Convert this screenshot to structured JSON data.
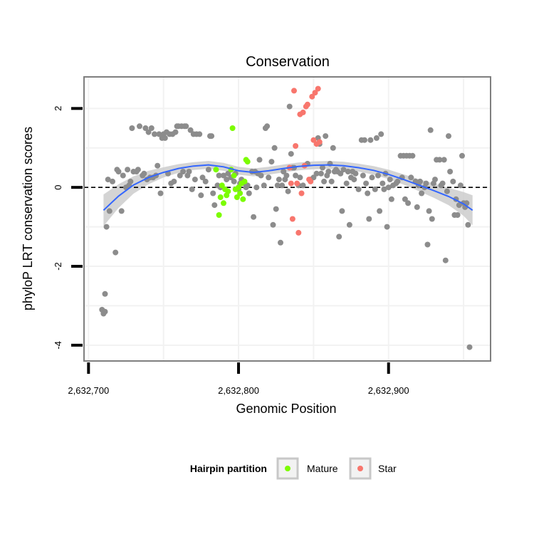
{
  "chart_data": {
    "type": "scatter",
    "title": "Conservation",
    "xlabel": "Genomic Position",
    "ylabel": "phyloP LRT conservation scores",
    "xlim": [
      2632697,
      2632968
    ],
    "ylim": [
      -4.4,
      2.8
    ],
    "x_ticks": [
      2632700,
      2632800,
      2632900
    ],
    "x_tick_labels": [
      "2,632,700",
      "2,632,800",
      "2,632,900"
    ],
    "y_ticks": [
      -4,
      -2,
      0,
      2
    ],
    "y_tick_labels": [
      "-4",
      "-2",
      "0",
      "2"
    ],
    "grid": true,
    "reference_line": {
      "y": 0,
      "style": "dashed",
      "color": "#000000"
    },
    "legend": {
      "title": "Hairpin partition",
      "placement": "bottom",
      "items": [
        {
          "label": "Mature",
          "color": "#7CFC00"
        },
        {
          "label": "Star",
          "color": "#F8766D"
        }
      ]
    },
    "colors": {
      "other": "#8c8c8c",
      "mature": "#7CFC00",
      "star": "#F8766D",
      "smooth": "#3366FF",
      "band": "#cccccc"
    },
    "series": [
      {
        "group": "other",
        "points": [
          [
            2632709,
            -3.1
          ],
          [
            2632710,
            -3.2
          ],
          [
            2632711,
            -3.15
          ],
          [
            2632711,
            -2.7
          ],
          [
            2632712,
            -1.0
          ],
          [
            2632713,
            0.2
          ],
          [
            2632714,
            -0.6
          ],
          [
            2632716,
            0.15
          ],
          [
            2632718,
            -1.65
          ],
          [
            2632719,
            0.45
          ],
          [
            2632720,
            0.4
          ],
          [
            2632722,
            -0.6
          ],
          [
            2632723,
            0.3
          ],
          [
            2632725,
            0.0
          ],
          [
            2632726,
            0.45
          ],
          [
            2632727,
            0.05
          ],
          [
            2632728,
            0.15
          ],
          [
            2632729,
            1.5
          ],
          [
            2632730,
            0.4
          ],
          [
            2632732,
            0.4
          ],
          [
            2632733,
            0.45
          ],
          [
            2632734,
            1.55
          ],
          [
            2632736,
            0.3
          ],
          [
            2632737,
            0.35
          ],
          [
            2632738,
            1.5
          ],
          [
            2632739,
            0.2
          ],
          [
            2632740,
            1.4
          ],
          [
            2632741,
            0.25
          ],
          [
            2632742,
            1.5
          ],
          [
            2632743,
            0.25
          ],
          [
            2632744,
            1.35
          ],
          [
            2632745,
            0.3
          ],
          [
            2632746,
            0.55
          ],
          [
            2632747,
            1.35
          ],
          [
            2632748,
            -0.15
          ],
          [
            2632749,
            1.25
          ],
          [
            2632750,
            1.35
          ],
          [
            2632751,
            1.25
          ],
          [
            2632752,
            1.4
          ],
          [
            2632753,
            0.35
          ],
          [
            2632754,
            1.35
          ],
          [
            2632755,
            0.1
          ],
          [
            2632756,
            1.35
          ],
          [
            2632757,
            0.15
          ],
          [
            2632758,
            1.4
          ],
          [
            2632759,
            1.55
          ],
          [
            2632760,
            1.55
          ],
          [
            2632761,
            0.3
          ],
          [
            2632762,
            1.55
          ],
          [
            2632763,
            0.4
          ],
          [
            2632764,
            1.55
          ],
          [
            2632765,
            1.55
          ],
          [
            2632766,
            0.3
          ],
          [
            2632767,
            0.4
          ],
          [
            2632768,
            1.45
          ],
          [
            2632769,
            -0.05
          ],
          [
            2632770,
            1.35
          ],
          [
            2632771,
            0.2
          ],
          [
            2632772,
            1.35
          ],
          [
            2632774,
            1.35
          ],
          [
            2632775,
            -0.2
          ],
          [
            2632776,
            0.25
          ],
          [
            2632778,
            0.15
          ],
          [
            2632780,
            0.45
          ],
          [
            2632781,
            1.3
          ],
          [
            2632782,
            1.3
          ],
          [
            2632783,
            -0.15
          ],
          [
            2632784,
            -0.45
          ],
          [
            2632786,
            0.05
          ],
          [
            2632787,
            0.3
          ],
          [
            2632788,
            0.0
          ],
          [
            2632790,
            0.3
          ],
          [
            2632792,
            0.2
          ],
          [
            2632793,
            0.35
          ],
          [
            2632795,
            0.25
          ],
          [
            2632797,
            0.15
          ],
          [
            2632798,
            0.35
          ],
          [
            2632800,
            -0.05
          ],
          [
            2632801,
            0.1
          ],
          [
            2632802,
            0.2
          ],
          [
            2632804,
            0.1
          ],
          [
            2632805,
            0.0
          ],
          [
            2632806,
            0.05
          ],
          [
            2632807,
            -0.15
          ],
          [
            2632809,
            0.4
          ],
          [
            2632810,
            -0.75
          ],
          [
            2632811,
            0.4
          ],
          [
            2632812,
            0.0
          ],
          [
            2632813,
            0.35
          ],
          [
            2632814,
            0.7
          ],
          [
            2632815,
            0.3
          ],
          [
            2632817,
            0.05
          ],
          [
            2632818,
            1.5
          ],
          [
            2632819,
            1.55
          ],
          [
            2632820,
            0.25
          ],
          [
            2632822,
            0.65
          ],
          [
            2632823,
            -0.95
          ],
          [
            2632824,
            1.0
          ],
          [
            2632825,
            -0.55
          ],
          [
            2632826,
            0.05
          ],
          [
            2632827,
            0.2
          ],
          [
            2632828,
            -1.4
          ],
          [
            2632829,
            0.05
          ],
          [
            2632830,
            0.4
          ],
          [
            2632831,
            0.2
          ],
          [
            2632832,
            0.3
          ],
          [
            2632833,
            -0.1
          ],
          [
            2632834,
            2.05
          ],
          [
            2632835,
            0.85
          ],
          [
            2632836,
            0.5
          ],
          [
            2632837,
            0.5
          ],
          [
            2632838,
            0.3
          ],
          [
            2632840,
            0.05
          ],
          [
            2632841,
            0.25
          ],
          [
            2632843,
            0.05
          ],
          [
            2632846,
            0.6
          ],
          [
            2632848,
            0.2
          ],
          [
            2632850,
            0.25
          ],
          [
            2632852,
            0.35
          ],
          [
            2632853,
            1.25
          ],
          [
            2632854,
            1.1
          ],
          [
            2632855,
            0.35
          ],
          [
            2632856,
            0.5
          ],
          [
            2632857,
            0.15
          ],
          [
            2632858,
            1.3
          ],
          [
            2632859,
            0.3
          ],
          [
            2632860,
            0.4
          ],
          [
            2632861,
            0.6
          ],
          [
            2632862,
            0.15
          ],
          [
            2632863,
            1.0
          ],
          [
            2632864,
            0.4
          ],
          [
            2632865,
            0.45
          ],
          [
            2632866,
            0.4
          ],
          [
            2632867,
            -1.25
          ],
          [
            2632868,
            0.35
          ],
          [
            2632869,
            -0.6
          ],
          [
            2632870,
            0.45
          ],
          [
            2632872,
            0.1
          ],
          [
            2632873,
            0.4
          ],
          [
            2632874,
            -0.95
          ],
          [
            2632875,
            0.25
          ],
          [
            2632876,
            0.4
          ],
          [
            2632877,
            0.2
          ],
          [
            2632878,
            0.35
          ],
          [
            2632880,
            -0.05
          ],
          [
            2632882,
            1.2
          ],
          [
            2632883,
            0.3
          ],
          [
            2632884,
            1.2
          ],
          [
            2632885,
            0.1
          ],
          [
            2632886,
            -0.15
          ],
          [
            2632887,
            -0.8
          ],
          [
            2632888,
            1.2
          ],
          [
            2632889,
            0.25
          ],
          [
            2632891,
            -0.05
          ],
          [
            2632892,
            1.25
          ],
          [
            2632893,
            0.3
          ],
          [
            2632894,
            -0.6
          ],
          [
            2632895,
            1.35
          ],
          [
            2632896,
            0.1
          ],
          [
            2632897,
            -0.05
          ],
          [
            2632898,
            0.35
          ],
          [
            2632899,
            -1.0
          ],
          [
            2632900,
            0.0
          ],
          [
            2632901,
            0.2
          ],
          [
            2632902,
            -0.3
          ],
          [
            2632903,
            0.05
          ],
          [
            2632905,
            0.1
          ],
          [
            2632906,
            0.15
          ],
          [
            2632908,
            0.8
          ],
          [
            2632909,
            0.25
          ],
          [
            2632910,
            0.8
          ],
          [
            2632911,
            -0.3
          ],
          [
            2632912,
            0.8
          ],
          [
            2632913,
            -0.4
          ],
          [
            2632914,
            0.8
          ],
          [
            2632915,
            0.25
          ],
          [
            2632916,
            0.8
          ],
          [
            2632918,
            0.15
          ],
          [
            2632919,
            -0.5
          ],
          [
            2632920,
            0.05
          ],
          [
            2632921,
            0.15
          ],
          [
            2632922,
            -0.15
          ],
          [
            2632924,
            0.0
          ],
          [
            2632925,
            0.1
          ],
          [
            2632926,
            -1.45
          ],
          [
            2632927,
            -0.6
          ],
          [
            2632928,
            1.45
          ],
          [
            2632929,
            -0.8
          ],
          [
            2632930,
            0.1
          ],
          [
            2632931,
            0.2
          ],
          [
            2632932,
            0.7
          ],
          [
            2632934,
            0.7
          ],
          [
            2632935,
            0.05
          ],
          [
            2632936,
            0.1
          ],
          [
            2632937,
            0.7
          ],
          [
            2632938,
            -1.85
          ],
          [
            2632939,
            -0.1
          ],
          [
            2632940,
            1.3
          ],
          [
            2632941,
            0.4
          ],
          [
            2632943,
            0.15
          ],
          [
            2632944,
            -0.7
          ],
          [
            2632945,
            -0.3
          ],
          [
            2632946,
            -0.7
          ],
          [
            2632947,
            -0.45
          ],
          [
            2632948,
            0.05
          ],
          [
            2632949,
            0.8
          ],
          [
            2632950,
            -0.4
          ],
          [
            2632951,
            -0.5
          ],
          [
            2632952,
            -0.4
          ],
          [
            2632953,
            -0.95
          ],
          [
            2632954,
            -4.05
          ]
        ]
      },
      {
        "group": "mature",
        "name": "Mature",
        "points": [
          [
            2632785,
            0.45
          ],
          [
            2632787,
            -0.7
          ],
          [
            2632788,
            -0.25
          ],
          [
            2632789,
            0.05
          ],
          [
            2632790,
            -0.4
          ],
          [
            2632791,
            -0.05
          ],
          [
            2632792,
            -0.2
          ],
          [
            2632793,
            -0.1
          ],
          [
            2632795,
            0.45
          ],
          [
            2632796,
            1.5
          ],
          [
            2632797,
            0.3
          ],
          [
            2632798,
            -0.05
          ],
          [
            2632799,
            -0.25
          ],
          [
            2632800,
            0.0
          ],
          [
            2632801,
            -0.15
          ],
          [
            2632802,
            0.1
          ],
          [
            2632803,
            -0.3
          ],
          [
            2632804,
            0.15
          ],
          [
            2632805,
            0.7
          ],
          [
            2632806,
            0.65
          ]
        ]
      },
      {
        "group": "star",
        "name": "Star",
        "points": [
          [
            2632834,
            0.5
          ],
          [
            2632835,
            0.1
          ],
          [
            2632836,
            -0.8
          ],
          [
            2632837,
            2.45
          ],
          [
            2632838,
            1.05
          ],
          [
            2632839,
            0.1
          ],
          [
            2632840,
            -1.15
          ],
          [
            2632841,
            1.85
          ],
          [
            2632842,
            -0.15
          ],
          [
            2632843,
            1.9
          ],
          [
            2632844,
            0.55
          ],
          [
            2632845,
            2.05
          ],
          [
            2632846,
            2.1
          ],
          [
            2632847,
            0.2
          ],
          [
            2632848,
            0.15
          ],
          [
            2632849,
            2.3
          ],
          [
            2632850,
            1.2
          ],
          [
            2632851,
            2.4
          ],
          [
            2632852,
            1.1
          ],
          [
            2632853,
            2.5
          ],
          [
            2632854,
            1.15
          ]
        ]
      }
    ],
    "smooth": {
      "x": [
        2632710,
        2632720,
        2632730,
        2632740,
        2632750,
        2632760,
        2632770,
        2632780,
        2632790,
        2632800,
        2632810,
        2632820,
        2632830,
        2632840,
        2632850,
        2632860,
        2632870,
        2632880,
        2632890,
        2632900,
        2632910,
        2632920,
        2632930,
        2632940,
        2632950,
        2632956
      ],
      "y": [
        -0.58,
        -0.22,
        0.06,
        0.25,
        0.38,
        0.48,
        0.54,
        0.57,
        0.52,
        0.42,
        0.38,
        0.42,
        0.48,
        0.53,
        0.56,
        0.57,
        0.55,
        0.5,
        0.43,
        0.33,
        0.2,
        0.06,
        -0.08,
        -0.23,
        -0.42,
        -0.58
      ],
      "se": [
        0.4,
        0.3,
        0.22,
        0.17,
        0.13,
        0.11,
        0.1,
        0.1,
        0.1,
        0.1,
        0.1,
        0.1,
        0.1,
        0.1,
        0.1,
        0.1,
        0.1,
        0.1,
        0.11,
        0.12,
        0.13,
        0.15,
        0.18,
        0.22,
        0.3,
        0.38
      ]
    }
  }
}
